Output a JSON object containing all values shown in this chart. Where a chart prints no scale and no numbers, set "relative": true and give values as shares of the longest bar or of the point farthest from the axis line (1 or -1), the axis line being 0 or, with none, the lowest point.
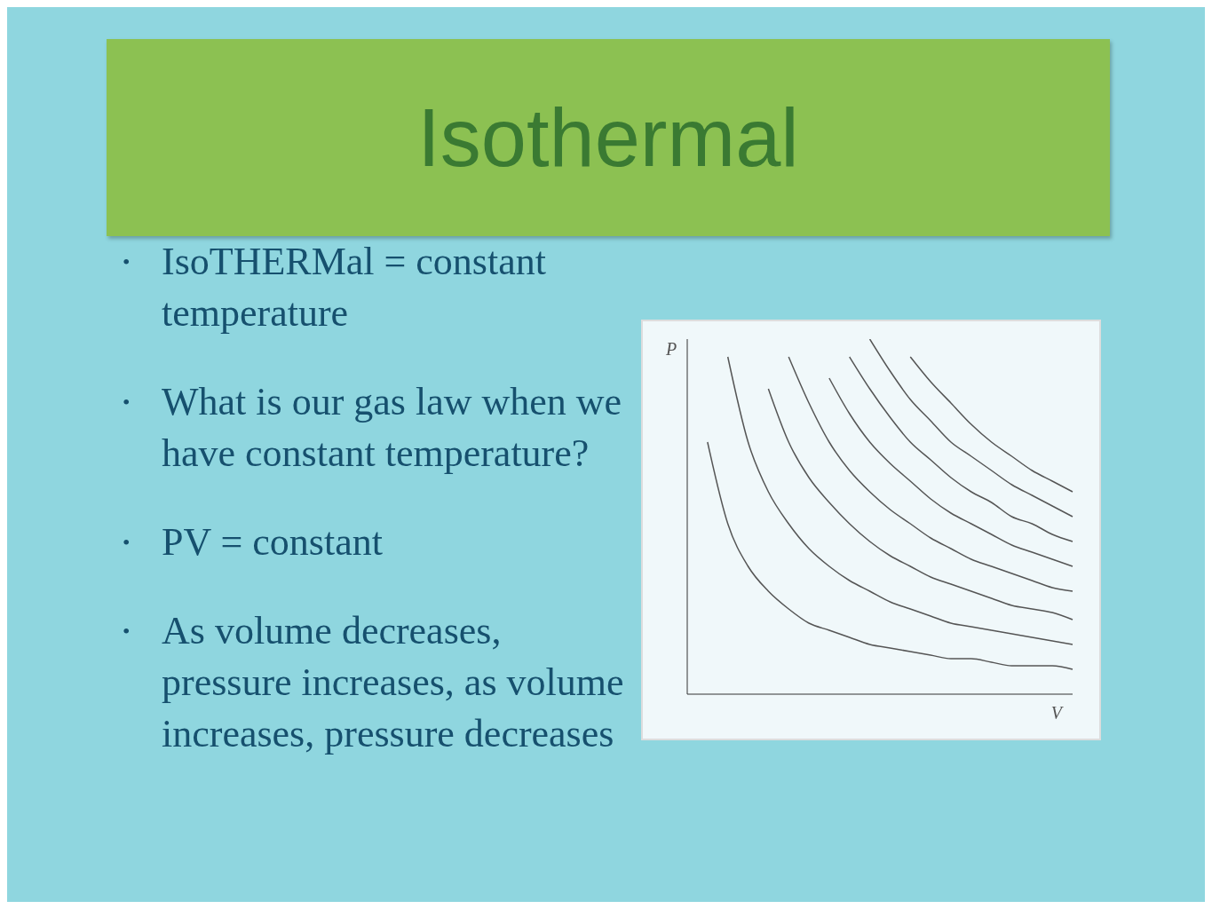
{
  "chart_data": {
    "type": "line",
    "title": "Isothermal",
    "annotations": [
      "• IsoTHERMal = constant temperature",
      "• What is our gas law when we have constant temperature?",
      "• PV = constant",
      "• As volume decreases, pressure increases, as volume increases, pressure decreases"
    ],
    "xlabel": "V",
    "ylabel": "P",
    "relative": true,
    "marker": "none",
    "line_style": "solid",
    "categories": [
      null,
      null,
      null,
      null,
      null,
      null,
      null,
      null,
      null,
      null,
      null,
      null,
      null,
      null,
      null,
      null,
      null,
      null,
      null,
      null
    ],
    "series": [
      {
        "color": "#555555",
        "values": [
          null,
          0.71,
          0.48,
          0.36,
          0.29,
          0.24,
          0.2,
          0.18,
          0.16,
          0.14,
          0.13,
          0.12,
          0.11,
          0.1,
          0.1,
          0.09,
          0.08,
          0.08,
          0.08,
          0.07
        ]
      },
      {
        "color": "#555555",
        "values": [
          null,
          null,
          0.95,
          0.71,
          0.57,
          0.48,
          0.41,
          0.36,
          0.32,
          0.29,
          0.26,
          0.24,
          0.22,
          0.2,
          0.19,
          0.18,
          0.17,
          0.16,
          0.15,
          0.14
        ]
      },
      {
        "color": "#555555",
        "values": [
          null,
          null,
          null,
          null,
          0.86,
          0.71,
          0.61,
          0.54,
          0.48,
          0.43,
          0.39,
          0.36,
          0.33,
          0.31,
          0.29,
          0.27,
          0.25,
          0.24,
          0.23,
          0.21
        ]
      },
      {
        "color": "#555555",
        "values": [
          null,
          null,
          null,
          null,
          null,
          0.95,
          0.82,
          0.71,
          0.63,
          0.57,
          0.52,
          0.48,
          0.44,
          0.41,
          0.38,
          0.36,
          0.34,
          0.32,
          0.3,
          0.29
        ]
      },
      {
        "color": "#555555",
        "values": [
          null,
          null,
          null,
          null,
          null,
          null,
          null,
          0.89,
          0.79,
          0.71,
          0.65,
          0.6,
          0.55,
          0.51,
          0.48,
          0.45,
          0.42,
          0.4,
          0.38,
          0.36
        ]
      },
      {
        "color": "#555555",
        "values": [
          null,
          null,
          null,
          null,
          null,
          null,
          null,
          null,
          0.95,
          0.86,
          0.78,
          0.71,
          0.66,
          0.61,
          0.57,
          0.54,
          0.5,
          0.48,
          0.45,
          0.43
        ]
      },
      {
        "color": "#555555",
        "values": [
          null,
          null,
          null,
          null,
          null,
          null,
          null,
          null,
          null,
          1,
          0.91,
          0.83,
          0.77,
          0.71,
          0.67,
          0.63,
          0.59,
          0.56,
          0.53,
          0.5
        ]
      },
      {
        "color": "#555555",
        "values": [
          null,
          null,
          null,
          null,
          null,
          null,
          null,
          null,
          null,
          null,
          null,
          0.95,
          0.88,
          0.82,
          0.76,
          0.71,
          0.67,
          0.63,
          0.6,
          0.57
        ]
      }
    ]
  }
}
